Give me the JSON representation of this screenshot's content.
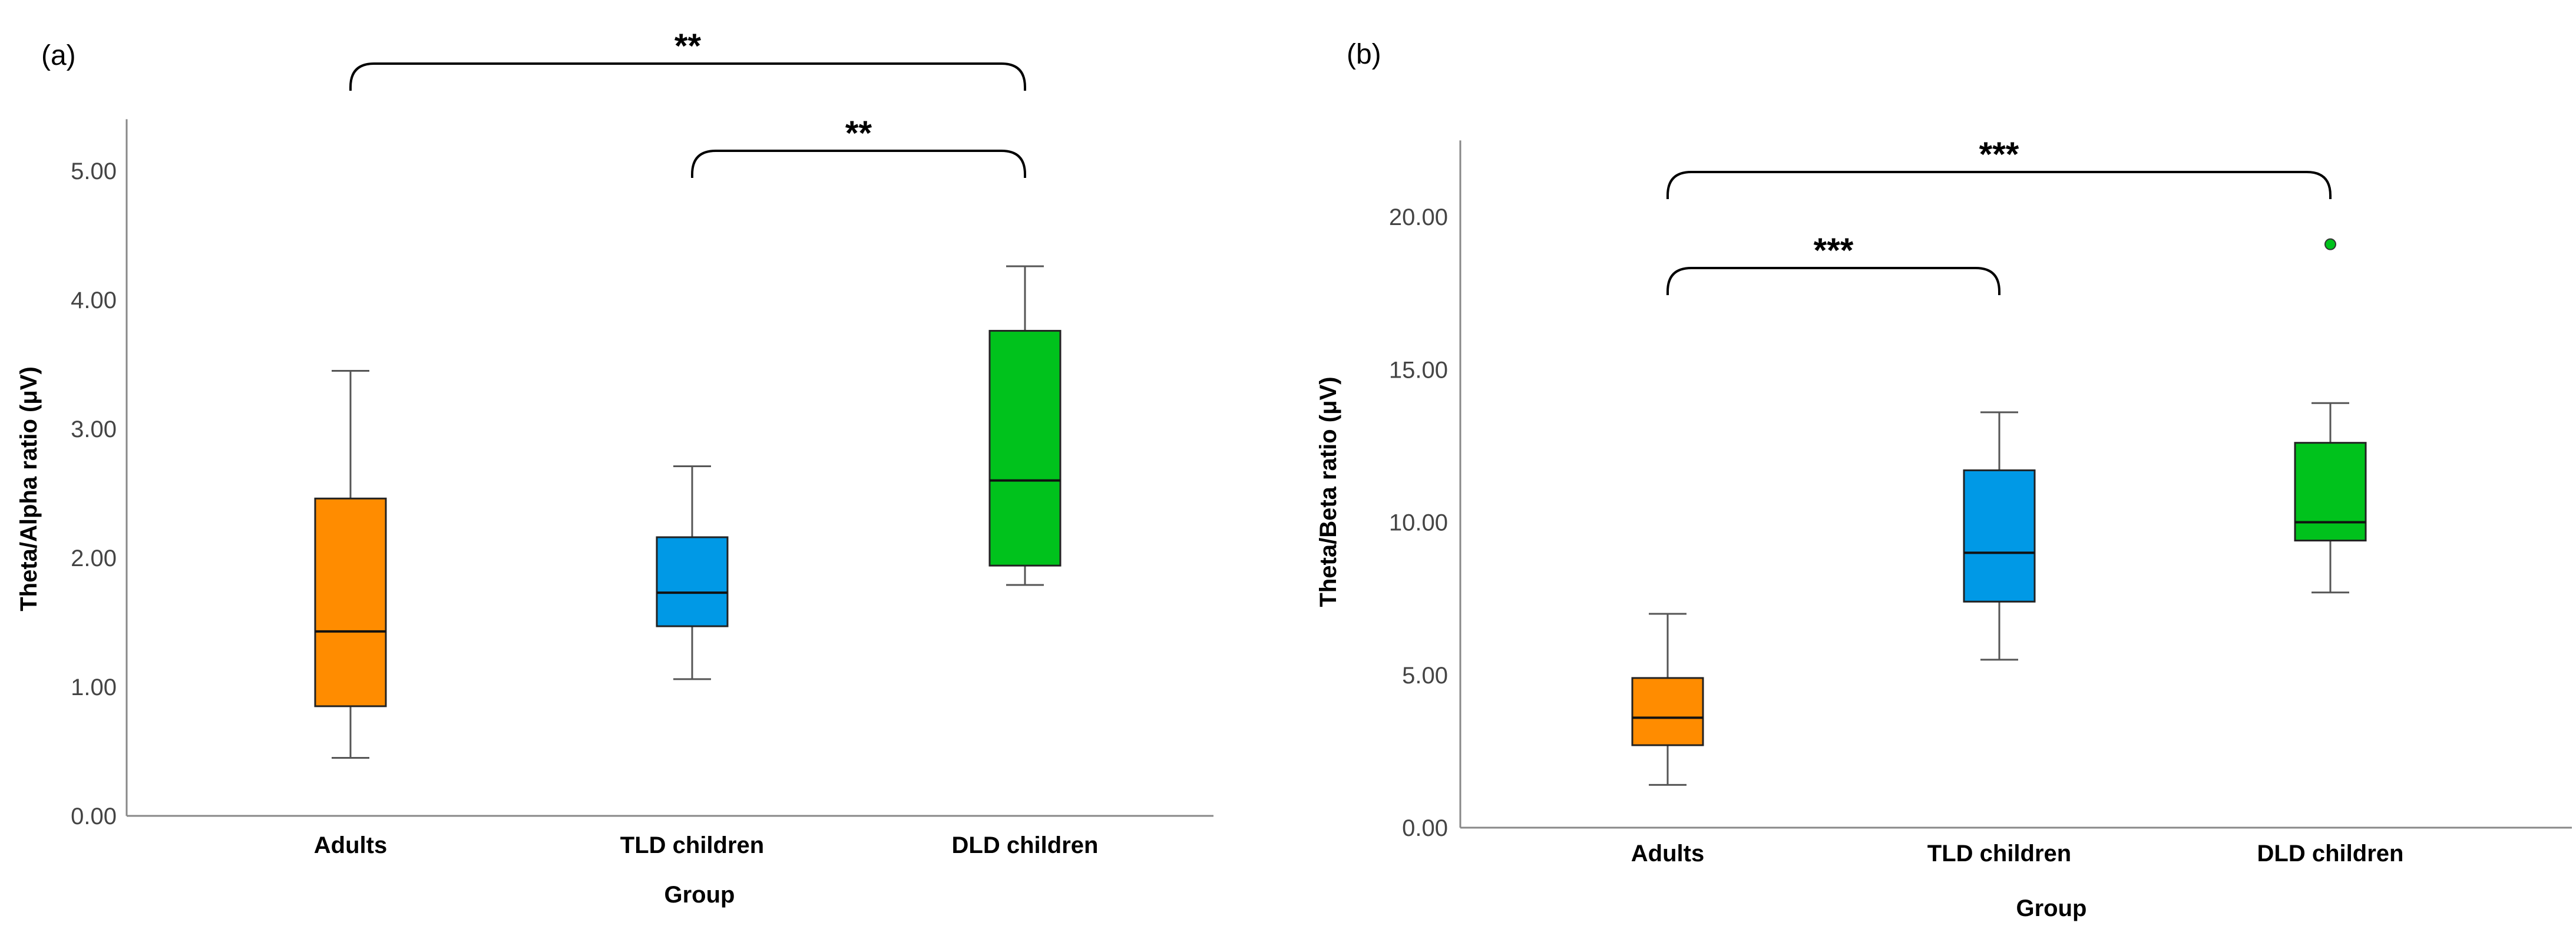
{
  "chart_data": [
    {
      "type": "box",
      "panel_label": "(a)",
      "title": "",
      "xlabel": "Group",
      "ylabel": "Theta/Alpha ratio (μV)",
      "ylim": [
        0,
        5.4
      ],
      "yticks": [
        0,
        1,
        2,
        3,
        4,
        5
      ],
      "ytick_labels": [
        "0.00",
        "1.00",
        "2.00",
        "3.00",
        "4.00",
        "5.00"
      ],
      "categories": [
        "Adults",
        "TLD children",
        "DLD children"
      ],
      "boxes": [
        {
          "category": "Adults",
          "min": 0.45,
          "q1": 0.85,
          "median": 1.43,
          "q3": 2.46,
          "max": 3.45,
          "color": "#ff8c00"
        },
        {
          "category": "TLD children",
          "min": 1.06,
          "q1": 1.47,
          "median": 1.73,
          "q3": 2.16,
          "max": 2.71,
          "color": "#0099e6"
        },
        {
          "category": "DLD children",
          "min": 1.79,
          "q1": 1.94,
          "median": 2.6,
          "q3": 3.76,
          "max": 4.26,
          "color": "#00c21c"
        }
      ],
      "outliers": [],
      "significance": [
        {
          "from": "Adults",
          "to": "DLD children",
          "label": "**",
          "y": 5.0
        },
        {
          "from": "TLD children",
          "to": "DLD children",
          "label": "**",
          "y": 4.95
        }
      ]
    },
    {
      "type": "box",
      "panel_label": "(b)",
      "title": "",
      "xlabel": "Group",
      "ylabel": "Theta/Beta ratio (μV)",
      "ylim": [
        0,
        22.5
      ],
      "yticks": [
        0,
        5,
        10,
        15,
        20
      ],
      "ytick_labels": [
        "0.00",
        "5.00",
        "10.00",
        "15.00",
        "20.00"
      ],
      "categories": [
        "Adults",
        "TLD children",
        "DLD children"
      ],
      "boxes": [
        {
          "category": "Adults",
          "min": 1.4,
          "q1": 2.7,
          "median": 3.6,
          "q3": 4.9,
          "max": 7.0,
          "color": "#ff8c00"
        },
        {
          "category": "TLD children",
          "min": 5.5,
          "q1": 7.4,
          "median": 9.0,
          "q3": 11.7,
          "max": 13.6,
          "color": "#0099e6"
        },
        {
          "category": "DLD children",
          "min": 7.7,
          "q1": 9.4,
          "median": 10.0,
          "q3": 12.6,
          "max": 13.9,
          "color": "#00c21c"
        }
      ],
      "outliers": [
        {
          "category": "DLD children",
          "value": 19.1,
          "color": "#00c21c"
        }
      ],
      "significance": [
        {
          "from": "Adults",
          "to": "DLD children",
          "label": "***",
          "y": 21.5
        },
        {
          "from": "Adults",
          "to": "TLD children",
          "label": "***",
          "y": 18.5
        }
      ]
    }
  ]
}
